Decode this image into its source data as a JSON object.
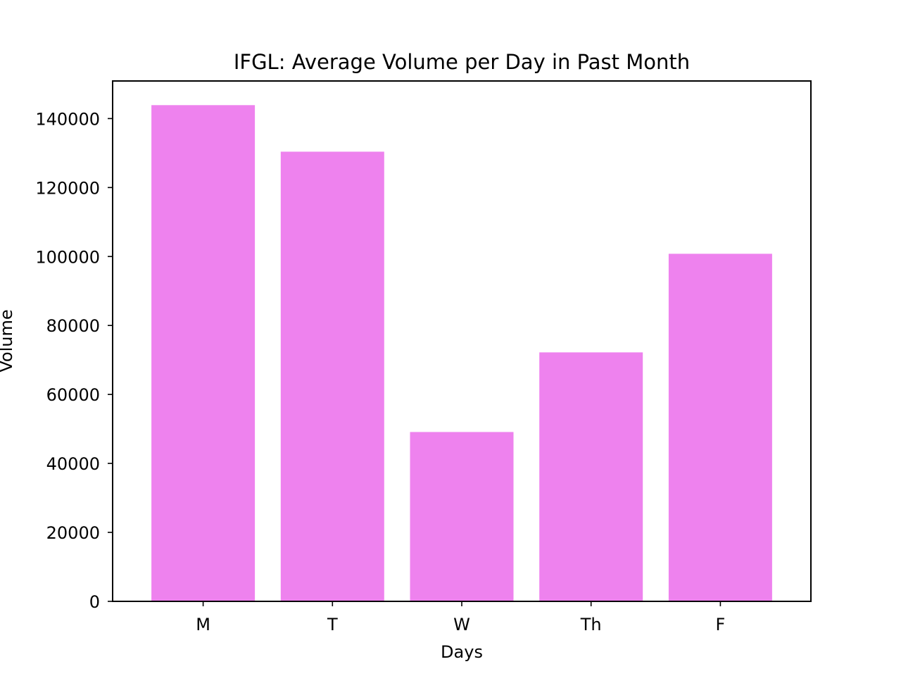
{
  "chart_data": {
    "type": "bar",
    "title": "IFGL: Average Volume per Day in Past Month",
    "xlabel": "Days",
    "ylabel": "Volume",
    "categories": [
      "M",
      "T",
      "W",
      "Th",
      "F"
    ],
    "values": [
      143900,
      130400,
      49100,
      72200,
      100800
    ],
    "ylim": [
      0,
      150900
    ],
    "yticks": [
      0,
      20000,
      40000,
      60000,
      80000,
      100000,
      120000,
      140000
    ],
    "bar_color": "#ee82ee",
    "grid": false,
    "legend": "none"
  }
}
